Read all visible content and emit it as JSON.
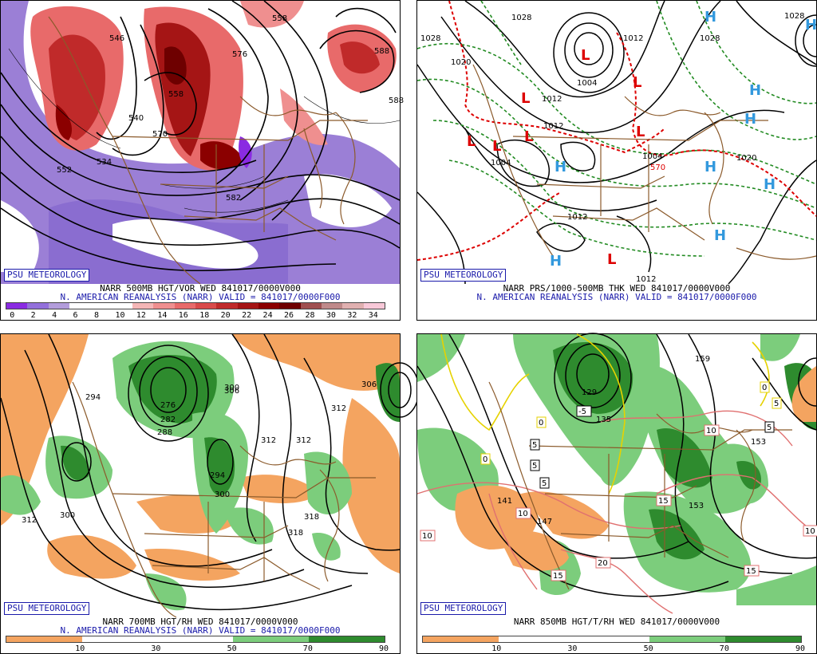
{
  "panels": [
    {
      "id": "p1",
      "badge": "PSU METEOROLOGY",
      "title": "NARR 500MB HGT/VOR WED 841017/0000V000",
      "subtitle": "N. AMERICAN REANALYSIS (NARR) VALID = 841017/0000F000",
      "colorbar": {
        "ticks": [
          "0",
          "2",
          "4",
          "6",
          "8",
          "10",
          "12",
          "14",
          "16",
          "18",
          "20",
          "22",
          "24",
          "26",
          "28",
          "30",
          "32",
          "34"
        ],
        "colors": [
          "#8a2be2",
          "#9370db",
          "#b39ddb",
          "#ffffff",
          "#ffffff",
          "#ffffff",
          "#f4b6b6",
          "#ef8f8f",
          "#e86a6a",
          "#d94a4a",
          "#c02a2a",
          "#a51515",
          "#8b0000",
          "#6e0000",
          "#a05050",
          "#c08a8a",
          "#e0b0b0",
          "#f8c8d8"
        ]
      },
      "contour_labels": [
        "546",
        "534",
        "540",
        "552",
        "558",
        "570",
        "576",
        "582",
        "558",
        "588",
        "588"
      ]
    },
    {
      "id": "p2",
      "badge": "PSU METEOROLOGY",
      "title": "NARR PRS/1000-500MB THK WED 841017/0000V000",
      "subtitle": "N. AMERICAN REANALYSIS (NARR) VALID = 841017/0000F000",
      "highs": [
        "H",
        "H",
        "H",
        "H",
        "H",
        "H",
        "H",
        "H",
        "H"
      ],
      "lows": [
        "L",
        "L",
        "L",
        "L",
        "L",
        "L",
        "L",
        "L"
      ],
      "contour_labels": [
        "1028",
        "1020",
        "1028",
        "1028",
        "1012",
        "1004",
        "1012",
        "1004",
        "1012",
        "1012",
        "1020",
        "1012",
        "1028",
        "1004"
      ],
      "thickness_labels": [
        "570"
      ]
    },
    {
      "id": "p3",
      "badge": "PSU METEOROLOGY",
      "title": "NARR 700MB HGT/RH WED 841017/0000V000",
      "subtitle": "N. AMERICAN REANALYSIS (NARR) VALID = 841017/0000F000",
      "colorbar": {
        "ticks": [
          "10",
          "30",
          "50",
          "70",
          "90"
        ],
        "colors": [
          "#f4a460",
          "#ffffff",
          "#ffffff",
          "#7ccd7c",
          "#2e8b2e"
        ]
      },
      "contour_labels": [
        "294",
        "276",
        "282",
        "288",
        "306",
        "300",
        "312",
        "294",
        "312",
        "312",
        "300",
        "318",
        "318",
        "312",
        "306",
        "300"
      ]
    },
    {
      "id": "p4",
      "badge": "PSU METEOROLOGY",
      "title": "NARR 850MB HGT/T/RH WED 841017/0000V000",
      "colorbar": {
        "ticks": [
          "10",
          "30",
          "50",
          "70",
          "90"
        ],
        "colors": [
          "#f4a460",
          "#ffffff",
          "#ffffff",
          "#7ccd7c",
          "#2e8b2e"
        ]
      },
      "contour_labels": [
        "159",
        "153",
        "147",
        "141",
        "153",
        "135",
        "129"
      ],
      "temp_labels": [
        "-5",
        "5",
        "5",
        "5",
        "10",
        "10",
        "10",
        "15",
        "15",
        "20",
        "15",
        "10",
        "5",
        "0",
        "0",
        "0",
        "5"
      ]
    }
  ]
}
